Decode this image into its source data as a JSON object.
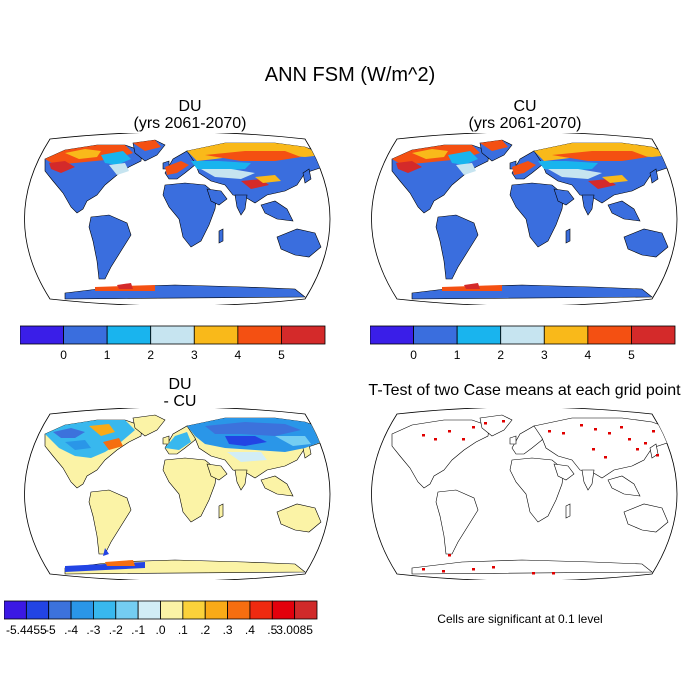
{
  "title": "ANN FSM (W/m^2)",
  "panels": {
    "du": {
      "title": "DU",
      "subtitle": "(yrs 2061-2070)"
    },
    "cu": {
      "title": "CU",
      "subtitle": "(yrs 2061-2070)"
    },
    "diff": {
      "title": "DU",
      "subtitle": "- CU"
    },
    "ttest": {
      "title": "T-Test of two Case means at each grid point",
      "note": "Cells are significant at 0.1 level"
    }
  },
  "colorbar_abs": {
    "colors": [
      "#3a1ee8",
      "#3a6ede",
      "#19b4ee",
      "#c6e4f0",
      "#f9b91a",
      "#f45012",
      "#d42a2a"
    ],
    "labels": [
      "0",
      "1",
      "2",
      "3",
      "4",
      "5"
    ]
  },
  "colorbar_diff": {
    "colors": [
      "#3b18e4",
      "#2244e4",
      "#3c72dc",
      "#2a96e8",
      "#38b8ee",
      "#74cdf2",
      "#d2edf6",
      "#fbf3a6",
      "#fbd23a",
      "#f9aa17",
      "#f66e10",
      "#ef2a10",
      "#e3000c",
      "#d02a2a"
    ],
    "labels": [
      "-5.4455",
      ".-5",
      ".-4",
      ".-3",
      ".-2",
      ".-1",
      ".0",
      ".1",
      ".2",
      ".3",
      ".4",
      ".5",
      "3.0085"
    ]
  },
  "map_colors": {
    "ocean": "#ffffff",
    "land_abs": "#3a6ede",
    "land_diff": "#fbf3a6",
    "significant": "#e00000"
  }
}
